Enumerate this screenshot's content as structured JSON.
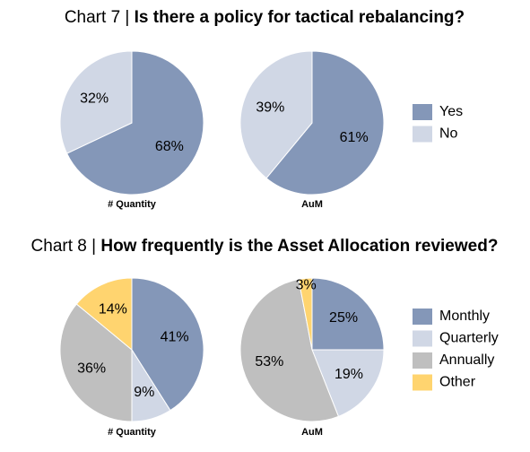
{
  "chart_data": [
    {
      "type": "pie",
      "heading": "Chart 7 |",
      "title": "Is there a policy for tactical rebalancing?",
      "label": "# Quantity",
      "categories": [
        "Yes",
        "No"
      ],
      "values": [
        68,
        32
      ],
      "value_labels": [
        "68%",
        "32%"
      ],
      "colors": [
        "#8497b8",
        "#d0d7e5"
      ]
    },
    {
      "type": "pie",
      "label": "AuM",
      "values": [
        61,
        39
      ],
      "value_labels": [
        "61%",
        "39%"
      ],
      "colors": [
        "#8497b8",
        "#d0d7e5"
      ]
    },
    {
      "type": "pie",
      "heading": "Chart 8 |",
      "title": "How frequently is the Asset Allocation reviewed?",
      "label": "# Quantity",
      "categories": [
        "Monthly",
        "Quarterly",
        "Annually",
        "Other"
      ],
      "values": [
        41,
        9,
        36,
        14
      ],
      "value_labels": [
        "41%",
        "9%",
        "36%",
        "14%"
      ],
      "colors": [
        "#8497b8",
        "#d0d7e5",
        "#bfbfbf",
        "#ffd46f"
      ]
    },
    {
      "type": "pie",
      "label": "AuM",
      "values": [
        25,
        19,
        53,
        3
      ],
      "value_labels": [
        "25%",
        "19%",
        "53%",
        "3%"
      ],
      "colors": [
        "#8497b8",
        "#d0d7e5",
        "#bfbfbf",
        "#ffd46f"
      ]
    }
  ]
}
